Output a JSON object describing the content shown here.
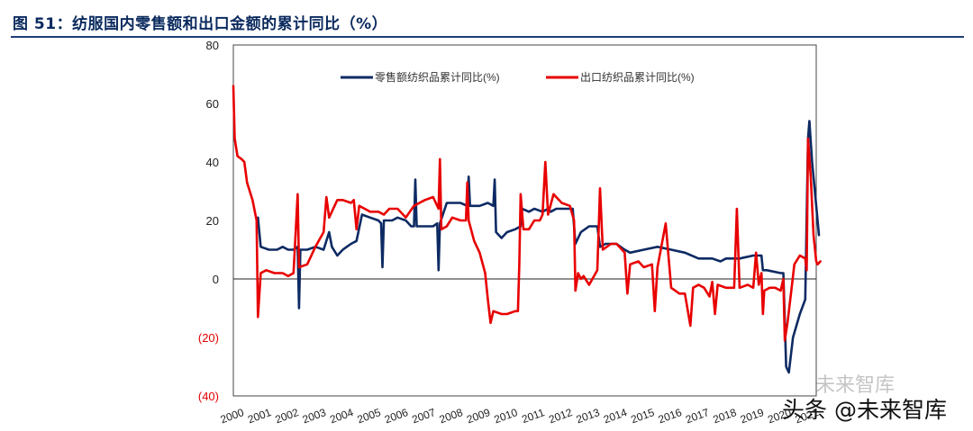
{
  "header": {
    "title": "图 51：纺服国内零售额和出口金额的累计同比（%）"
  },
  "watermark": {
    "line1": "未来智库",
    "line2": "头条 @未来智库"
  },
  "chart_data": {
    "type": "line",
    "title": "图 51：纺服国内零售额和出口金额的累计同比（%）",
    "xlabel": "",
    "ylabel": "",
    "xlim": [
      2000,
      2021.3
    ],
    "ylim": [
      -40,
      80
    ],
    "yticks": [
      80,
      60,
      40,
      20,
      0,
      -20,
      -40
    ],
    "ytick_labels": [
      "80",
      "60",
      "40",
      "20",
      "0",
      "(20)",
      "(40)"
    ],
    "negative_label_color": "#e30000",
    "xtick_labels": [
      "2000",
      "2001",
      "2002",
      "2003",
      "2004",
      "2005",
      "2006",
      "2007",
      "2008",
      "2009",
      "2010",
      "2011",
      "2012",
      "2013",
      "2014",
      "2015",
      "2016",
      "2017",
      "2018",
      "2019",
      "2020",
      "2021"
    ],
    "legend_position": "top-center",
    "series": [
      {
        "name": "零售额纺织品累计同比(%)",
        "color": "#0d2a63",
        "points": [
          [
            2000.9,
            21
          ],
          [
            2001.0,
            11
          ],
          [
            2001.3,
            10
          ],
          [
            2001.6,
            10
          ],
          [
            2001.8,
            11
          ],
          [
            2002.0,
            10
          ],
          [
            2002.2,
            10
          ],
          [
            2002.35,
            11
          ],
          [
            2002.4,
            -10
          ],
          [
            2002.45,
            10
          ],
          [
            2002.7,
            10
          ],
          [
            2003.0,
            11
          ],
          [
            2003.3,
            10
          ],
          [
            2003.5,
            16
          ],
          [
            2003.6,
            11
          ],
          [
            2003.8,
            8
          ],
          [
            2004.0,
            10
          ],
          [
            2004.3,
            12
          ],
          [
            2004.5,
            13
          ],
          [
            2004.7,
            22
          ],
          [
            2005.0,
            21
          ],
          [
            2005.3,
            20
          ],
          [
            2005.4,
            19
          ],
          [
            2005.45,
            4
          ],
          [
            2005.5,
            20
          ],
          [
            2005.8,
            20
          ],
          [
            2006.0,
            21
          ],
          [
            2006.3,
            20
          ],
          [
            2006.5,
            18
          ],
          [
            2006.6,
            18
          ],
          [
            2006.65,
            34
          ],
          [
            2006.7,
            18
          ],
          [
            2007.0,
            18
          ],
          [
            2007.3,
            18
          ],
          [
            2007.45,
            19
          ],
          [
            2007.5,
            3
          ],
          [
            2007.55,
            19
          ],
          [
            2007.8,
            26
          ],
          [
            2008.0,
            26
          ],
          [
            2008.3,
            26
          ],
          [
            2008.55,
            25
          ],
          [
            2008.6,
            35
          ],
          [
            2008.65,
            25
          ],
          [
            2009.0,
            25
          ],
          [
            2009.3,
            26
          ],
          [
            2009.5,
            25
          ],
          [
            2009.55,
            34
          ],
          [
            2009.6,
            16
          ],
          [
            2009.8,
            14
          ],
          [
            2010.0,
            16
          ],
          [
            2010.3,
            17
          ],
          [
            2010.5,
            18
          ],
          [
            2010.55,
            24
          ],
          [
            2010.8,
            23
          ],
          [
            2011.0,
            24
          ],
          [
            2011.3,
            23
          ],
          [
            2011.5,
            24
          ],
          [
            2011.6,
            23
          ],
          [
            2011.8,
            24
          ],
          [
            2012.0,
            24
          ],
          [
            2012.2,
            24
          ],
          [
            2012.4,
            24
          ],
          [
            2012.5,
            12
          ],
          [
            2012.7,
            16
          ],
          [
            2013.0,
            18
          ],
          [
            2013.3,
            18
          ],
          [
            2013.4,
            11
          ],
          [
            2013.6,
            12
          ],
          [
            2014.0,
            12
          ],
          [
            2014.3,
            10
          ],
          [
            2014.5,
            9
          ],
          [
            2015.0,
            10
          ],
          [
            2015.5,
            11
          ],
          [
            2016.0,
            10
          ],
          [
            2016.5,
            9
          ],
          [
            2017.0,
            7
          ],
          [
            2017.5,
            7
          ],
          [
            2017.8,
            6
          ],
          [
            2018.0,
            7
          ],
          [
            2018.5,
            7
          ],
          [
            2019.0,
            8
          ],
          [
            2019.3,
            8
          ],
          [
            2019.35,
            3
          ],
          [
            2019.5,
            3
          ],
          [
            2020.0,
            2
          ],
          [
            2020.1,
            2
          ],
          [
            2020.2,
            -30
          ],
          [
            2020.3,
            -32
          ],
          [
            2020.45,
            -20
          ],
          [
            2020.7,
            -12
          ],
          [
            2020.9,
            -7
          ],
          [
            2021.0,
            48
          ],
          [
            2021.05,
            54
          ],
          [
            2021.15,
            40
          ],
          [
            2021.3,
            25
          ],
          [
            2021.4,
            15
          ]
        ]
      },
      {
        "name": "出口纺织品累计同比(%)",
        "color": "#e80000",
        "points": [
          [
            2000.0,
            66
          ],
          [
            2000.05,
            48
          ],
          [
            2000.15,
            42
          ],
          [
            2000.3,
            41
          ],
          [
            2000.4,
            40
          ],
          [
            2000.5,
            33
          ],
          [
            2000.7,
            27
          ],
          [
            2000.85,
            20
          ],
          [
            2000.9,
            -13
          ],
          [
            2001.0,
            2
          ],
          [
            2001.2,
            3
          ],
          [
            2001.5,
            2
          ],
          [
            2001.8,
            2
          ],
          [
            2002.0,
            1
          ],
          [
            2002.2,
            2
          ],
          [
            2002.35,
            29
          ],
          [
            2002.4,
            4
          ],
          [
            2002.7,
            5
          ],
          [
            2003.0,
            11
          ],
          [
            2003.3,
            16
          ],
          [
            2003.4,
            28
          ],
          [
            2003.5,
            21
          ],
          [
            2003.8,
            27
          ],
          [
            2004.0,
            27
          ],
          [
            2004.3,
            26
          ],
          [
            2004.4,
            27
          ],
          [
            2004.5,
            17
          ],
          [
            2004.6,
            25
          ],
          [
            2004.8,
            24
          ],
          [
            2005.0,
            23
          ],
          [
            2005.3,
            23
          ],
          [
            2005.5,
            22
          ],
          [
            2005.7,
            24
          ],
          [
            2006.0,
            24
          ],
          [
            2006.3,
            21
          ],
          [
            2006.6,
            25
          ],
          [
            2006.8,
            26
          ],
          [
            2007.0,
            27
          ],
          [
            2007.3,
            28
          ],
          [
            2007.5,
            24
          ],
          [
            2007.55,
            41
          ],
          [
            2007.6,
            17
          ],
          [
            2007.8,
            18
          ],
          [
            2008.0,
            21
          ],
          [
            2008.3,
            20
          ],
          [
            2008.5,
            20
          ],
          [
            2008.55,
            33
          ],
          [
            2008.6,
            20
          ],
          [
            2008.8,
            13
          ],
          [
            2009.0,
            9
          ],
          [
            2009.2,
            2
          ],
          [
            2009.3,
            -7
          ],
          [
            2009.4,
            -15
          ],
          [
            2009.5,
            -11
          ],
          [
            2009.8,
            -12
          ],
          [
            2010.0,
            -12
          ],
          [
            2010.3,
            -11
          ],
          [
            2010.4,
            -11
          ],
          [
            2010.45,
            5
          ],
          [
            2010.5,
            29
          ],
          [
            2010.6,
            17
          ],
          [
            2010.8,
            17
          ],
          [
            2011.0,
            20
          ],
          [
            2011.2,
            20
          ],
          [
            2011.3,
            22
          ],
          [
            2011.4,
            40
          ],
          [
            2011.5,
            22
          ],
          [
            2011.7,
            29
          ],
          [
            2012.0,
            26
          ],
          [
            2012.3,
            25
          ],
          [
            2012.45,
            20
          ],
          [
            2012.5,
            -4
          ],
          [
            2012.6,
            2
          ],
          [
            2012.7,
            0
          ],
          [
            2012.8,
            1
          ],
          [
            2013.0,
            -2
          ],
          [
            2013.3,
            3
          ],
          [
            2013.4,
            31
          ],
          [
            2013.5,
            10
          ],
          [
            2013.8,
            12
          ],
          [
            2014.0,
            12
          ],
          [
            2014.3,
            9
          ],
          [
            2014.4,
            -5
          ],
          [
            2014.5,
            5
          ],
          [
            2014.8,
            6
          ],
          [
            2015.0,
            4
          ],
          [
            2015.3,
            5
          ],
          [
            2015.4,
            -11
          ],
          [
            2015.5,
            4
          ],
          [
            2015.8,
            19
          ],
          [
            2016.0,
            -3
          ],
          [
            2016.3,
            -5
          ],
          [
            2016.5,
            -5
          ],
          [
            2016.7,
            -16
          ],
          [
            2016.8,
            -3
          ],
          [
            2017.0,
            -2
          ],
          [
            2017.2,
            -3
          ],
          [
            2017.4,
            -6
          ],
          [
            2017.5,
            -1
          ],
          [
            2017.6,
            -12
          ],
          [
            2017.7,
            -2
          ],
          [
            2018.0,
            -3
          ],
          [
            2018.3,
            -3
          ],
          [
            2018.4,
            24
          ],
          [
            2018.5,
            -3
          ],
          [
            2018.8,
            -2
          ],
          [
            2019.0,
            -3
          ],
          [
            2019.1,
            9
          ],
          [
            2019.2,
            -2
          ],
          [
            2019.3,
            2
          ],
          [
            2019.35,
            -12
          ],
          [
            2019.4,
            -4
          ],
          [
            2019.6,
            -3
          ],
          [
            2019.8,
            -3
          ],
          [
            2020.0,
            -4
          ],
          [
            2020.1,
            0
          ],
          [
            2020.15,
            -21
          ],
          [
            2020.25,
            -15
          ],
          [
            2020.4,
            -3
          ],
          [
            2020.5,
            5
          ],
          [
            2020.7,
            8
          ],
          [
            2020.9,
            7
          ],
          [
            2020.95,
            3
          ],
          [
            2021.0,
            48
          ],
          [
            2021.1,
            35
          ],
          [
            2021.2,
            15
          ],
          [
            2021.3,
            6
          ],
          [
            2021.35,
            5
          ],
          [
            2021.45,
            6
          ]
        ]
      }
    ]
  }
}
